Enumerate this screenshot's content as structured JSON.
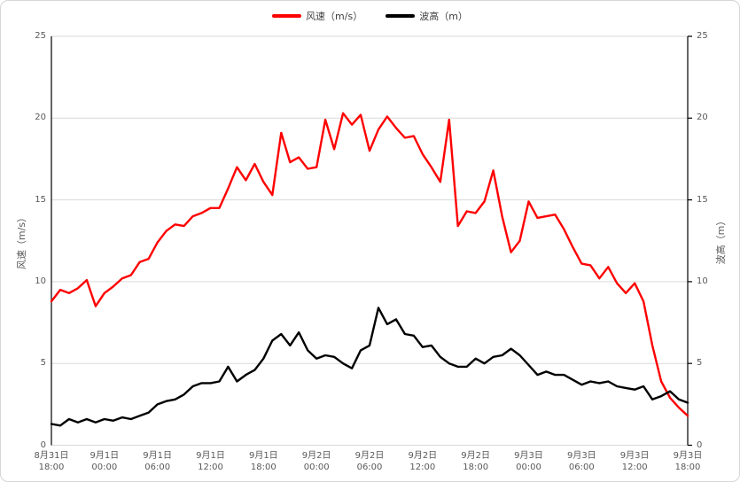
{
  "chart": {
    "background": "#FFFFFF",
    "border_color": "#D5D5D5"
  },
  "chart_data": {
    "type": "line",
    "title": "",
    "x_start_label": "8月31日 18:00",
    "x_end_label": "9月3日 18:00",
    "x_interval_hours": 1,
    "x_tick_labels": [
      {
        "date": "8月31日",
        "time": "18:00"
      },
      {
        "date": "9月1日",
        "time": "00:00"
      },
      {
        "date": "9月1日",
        "time": "06:00"
      },
      {
        "date": "9月1日",
        "time": "12:00"
      },
      {
        "date": "9月1日",
        "time": "18:00"
      },
      {
        "date": "9月2日",
        "time": "00:00"
      },
      {
        "date": "9月2日",
        "time": "06:00"
      },
      {
        "date": "9月2日",
        "time": "12:00"
      },
      {
        "date": "9月2日",
        "time": "18:00"
      },
      {
        "date": "9月3日",
        "time": "00:00"
      },
      {
        "date": "9月3日",
        "time": "06:00"
      },
      {
        "date": "9月3日",
        "time": "12:00"
      },
      {
        "date": "9月3日",
        "time": "18:00"
      }
    ],
    "y_ticks": [
      0,
      5,
      10,
      15,
      20,
      25
    ],
    "y_left": {
      "title": "风速（m/s）",
      "min": 0,
      "max": 25
    },
    "y_right": {
      "title": "波高（m）",
      "min": 0,
      "max": 25
    },
    "grid": {
      "horizontal": true,
      "vertical": false
    },
    "legend_position": "top-center",
    "colors": {
      "grid": "#D9D9D9",
      "axis_line": "#000000",
      "tick_text": "#595959"
    },
    "series": [
      {
        "name": "风速（m/s）",
        "axis": "left",
        "color": "#FF0000",
        "stroke_width": 2.4,
        "values": [
          8.8,
          9.5,
          9.3,
          9.6,
          10.1,
          8.5,
          9.3,
          9.7,
          10.2,
          10.4,
          11.2,
          11.4,
          12.4,
          13.1,
          13.5,
          13.4,
          14.0,
          14.2,
          14.5,
          14.5,
          15.7,
          17.0,
          16.2,
          17.2,
          16.1,
          15.3,
          19.1,
          17.3,
          17.6,
          16.9,
          17.0,
          19.9,
          18.1,
          20.3,
          19.6,
          20.2,
          18.0,
          19.3,
          20.1,
          19.4,
          18.8,
          18.9,
          17.8,
          17.0,
          16.1,
          19.9,
          13.4,
          14.3,
          14.2,
          14.9,
          16.8,
          14.0,
          11.8,
          12.5,
          14.9,
          13.9,
          14.0,
          14.1,
          13.2,
          12.1,
          11.1,
          11.0,
          10.2,
          10.9,
          9.9,
          9.3,
          9.9,
          8.8,
          6.1,
          3.9,
          2.9,
          2.3,
          1.8
        ]
      },
      {
        "name": "波高（m）",
        "axis": "right",
        "color": "#000000",
        "stroke_width": 2.4,
        "values": [
          1.3,
          1.2,
          1.6,
          1.4,
          1.6,
          1.4,
          1.6,
          1.5,
          1.7,
          1.6,
          1.8,
          2.0,
          2.5,
          2.7,
          2.8,
          3.1,
          3.6,
          3.8,
          3.8,
          3.9,
          4.8,
          3.9,
          4.3,
          4.6,
          5.3,
          6.4,
          6.8,
          6.1,
          6.9,
          5.8,
          5.3,
          5.5,
          5.4,
          5.0,
          4.7,
          5.8,
          6.1,
          8.4,
          7.4,
          7.7,
          6.8,
          6.7,
          6.0,
          6.1,
          5.4,
          5.0,
          4.8,
          4.8,
          5.3,
          5.0,
          5.4,
          5.5,
          5.9,
          5.5,
          4.9,
          4.3,
          4.5,
          4.3,
          4.3,
          4.0,
          3.7,
          3.9,
          3.8,
          3.9,
          3.6,
          3.5,
          3.4,
          3.6,
          2.8,
          3.0,
          3.3,
          2.8,
          2.6
        ]
      }
    ]
  }
}
